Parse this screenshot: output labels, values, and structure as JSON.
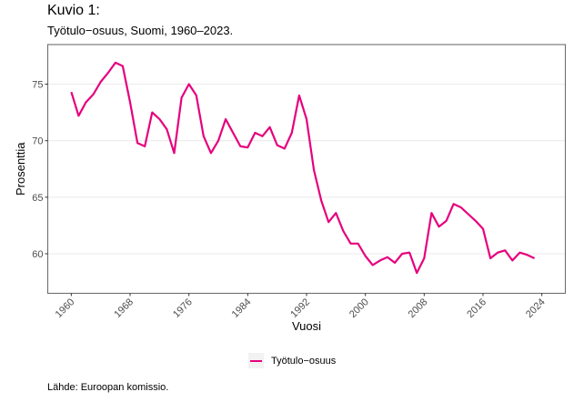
{
  "figure": {
    "label": "Kuvio 1:",
    "title": "Työtulo−osuus, Suomi, 1960–2023.",
    "source": "Lähde: Euroopan komissio."
  },
  "chart_data": {
    "type": "line",
    "title": "Työtulo−osuus, Suomi, 1960–2023.",
    "xlabel": "Vuosi",
    "ylabel": "Prosenttia",
    "xlim": [
      1956.8,
      2027.2
    ],
    "ylim": [
      56.5,
      78.5
    ],
    "x_ticks": [
      1960,
      1968,
      1976,
      1984,
      1992,
      2000,
      2008,
      2016,
      2024
    ],
    "y_ticks": [
      60,
      65,
      70,
      75
    ],
    "grid": "horizontal",
    "legend": {
      "position": "bottom",
      "entries": [
        "Työtulo−osuus"
      ]
    },
    "series": [
      {
        "name": "Työtulo−osuus",
        "color": "#e6007e",
        "x": [
          1960,
          1961,
          1962,
          1963,
          1964,
          1965,
          1966,
          1967,
          1968,
          1969,
          1970,
          1971,
          1972,
          1973,
          1974,
          1975,
          1976,
          1977,
          1978,
          1979,
          1980,
          1981,
          1982,
          1983,
          1984,
          1985,
          1986,
          1987,
          1988,
          1989,
          1990,
          1991,
          1992,
          1993,
          1994,
          1995,
          1996,
          1997,
          1998,
          1999,
          2000,
          2001,
          2002,
          2003,
          2004,
          2005,
          2006,
          2007,
          2008,
          2009,
          2010,
          2011,
          2012,
          2013,
          2014,
          2015,
          2016,
          2017,
          2018,
          2019,
          2020,
          2021,
          2022,
          2023
        ],
        "values": [
          74.3,
          72.2,
          73.4,
          74.1,
          75.2,
          76.0,
          76.9,
          76.6,
          73.4,
          69.8,
          69.5,
          72.5,
          71.9,
          71.0,
          68.9,
          73.8,
          75.0,
          74.0,
          70.4,
          68.9,
          70.0,
          71.9,
          70.7,
          69.5,
          69.4,
          70.7,
          70.4,
          71.2,
          69.6,
          69.3,
          70.7,
          74.0,
          71.9,
          67.4,
          64.7,
          62.8,
          63.6,
          62.0,
          60.9,
          60.9,
          59.8,
          59.0,
          59.4,
          59.7,
          59.2,
          60.0,
          60.1,
          58.3,
          59.6,
          63.6,
          62.4,
          62.9,
          64.4,
          64.1,
          63.5,
          62.9,
          62.2,
          59.6,
          60.1,
          60.3,
          59.4,
          60.1,
          59.9,
          59.6
        ]
      }
    ]
  }
}
